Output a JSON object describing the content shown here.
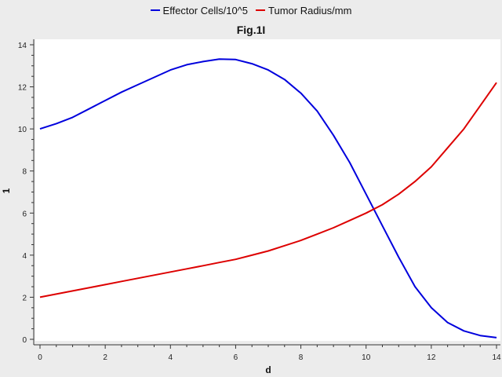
{
  "chart_data": {
    "type": "line",
    "title": "Fig.1I",
    "xlabel": "d",
    "ylabel": "1",
    "xlim": [
      0,
      14
    ],
    "ylim": [
      0,
      14
    ],
    "xticks": [
      0,
      2,
      4,
      6,
      8,
      10,
      12,
      14
    ],
    "yticks": [
      0,
      2,
      4,
      6,
      8,
      10,
      12,
      14
    ],
    "grid": false,
    "legend_position": "top-center",
    "series": [
      {
        "name": "Effector Cells/10^5",
        "color": "#0000dd",
        "x": [
          0,
          0.5,
          1,
          1.5,
          2,
          2.5,
          3,
          3.5,
          4,
          4.5,
          5,
          5.5,
          6,
          6.5,
          7,
          7.5,
          8,
          8.5,
          9,
          9.5,
          10,
          10.5,
          11,
          11.5,
          12,
          12.5,
          13,
          13.5,
          14
        ],
        "y": [
          10.0,
          10.25,
          10.55,
          10.95,
          11.35,
          11.75,
          12.1,
          12.45,
          12.8,
          13.05,
          13.2,
          13.32,
          13.3,
          13.1,
          12.8,
          12.35,
          11.7,
          10.85,
          9.7,
          8.4,
          6.9,
          5.4,
          3.9,
          2.5,
          1.5,
          0.8,
          0.4,
          0.18,
          0.08
        ]
      },
      {
        "name": "Tumor Radius/mm",
        "color": "#dd0000",
        "x": [
          0,
          0.5,
          1,
          1.5,
          2,
          2.5,
          3,
          3.5,
          4,
          4.5,
          5,
          5.5,
          6,
          6.5,
          7,
          7.5,
          8,
          8.5,
          9,
          9.5,
          10,
          10.5,
          11,
          11.5,
          12,
          12.5,
          13,
          13.5,
          14
        ],
        "y": [
          2.0,
          2.15,
          2.3,
          2.45,
          2.6,
          2.75,
          2.9,
          3.05,
          3.2,
          3.35,
          3.5,
          3.65,
          3.8,
          4.0,
          4.2,
          4.45,
          4.7,
          5.0,
          5.3,
          5.65,
          6.0,
          6.4,
          6.9,
          7.5,
          8.2,
          9.1,
          10.0,
          11.1,
          12.2
        ]
      }
    ]
  }
}
